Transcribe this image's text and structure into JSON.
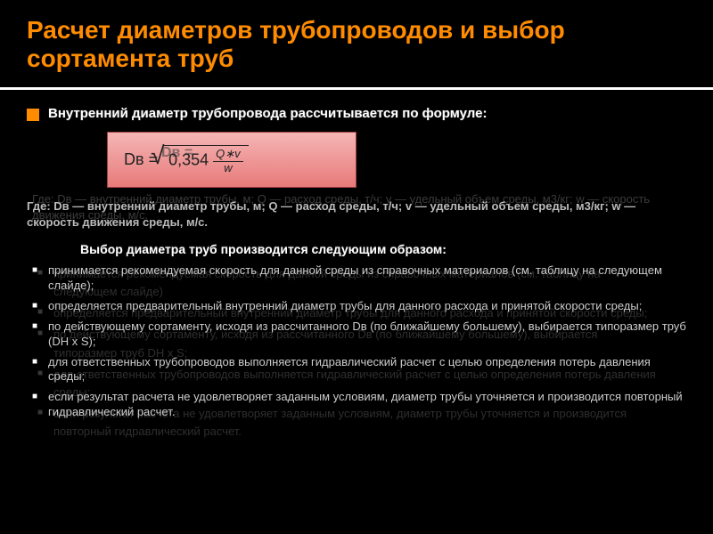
{
  "title": "Расчет диаметров трубопроводов и выбор сортамента труб",
  "intro_front": "Внутренний диаметр трубопровода рассчитывается по формуле:",
  "intro_back": "Внутренний диаметр трубопровода рассчитывается по формуле:",
  "formula": {
    "lhs": "Dв =",
    "coef": "0,354",
    "num": "Q∗v",
    "den": "w",
    "ghost": "Dв ="
  },
  "where_front": "Где:  Dв — внутренний диаметр трубы, м; Q — расход среды, т/ч; v — удельный объем среды, м3/кг; w — скорость движения среды, м/с.",
  "where_back": "Где: Dв — внутренний диаметр трубы, м; Q — расход среды, т/ч; v — удельный объем среды, м3/кг; w — скорость движения среды, м/с.",
  "subtitle_front": "Выбор диаметра труб производится следующим образом:",
  "subtitle_back": "Выбор диаметра труб производится следующим образом:",
  "steps_front": [
    "принимается рекомендуемая скорость для данной среды из справочных материалов (см. таблицу на следующем слайде);",
    "определяется предварительный внутренний диаметр трубы для данного расхода и принятой скорости среды;",
    "по действующему сортаменту, исходя из рассчитанного Dв (по ближайшему большему), выбирается типоразмер труб (DН х S);",
    "для ответственных трубопроводов выполняется гидравлический расчет с целью определения потерь давления среды;",
    "если результат расчета не удовлетворяет заданным условиям, диаметр трубы уточняется и производится повторный гидравлический расчет."
  ],
  "steps_back": [
    "принимается рекомендуемая скорость для данной среды из справочных материалов (см. таблицу на следующем слайде)",
    "определяется предварительный внутренний диаметр трубы для данного расхода и принятой скорости среды;",
    "по действующему сортаменту, исходя из рассчитанного Dв (по ближайшему большему), выбирается типоразмер труб DН х S;",
    "для ответственных трубопроводов выполняется гидравлический расчет с целью определения потерь давления среды;",
    "если результат расчета не удовлетворяет заданным условиям, диаметр трубы уточняется и производится повторный гидравлический расчет."
  ],
  "colors": {
    "title": "#ff8c00",
    "background": "#000000",
    "text": "#ffffff",
    "muted": "#cccccc",
    "formula_bg_top": "#f5b5b5",
    "formula_bg_bottom": "#e87a7a"
  }
}
